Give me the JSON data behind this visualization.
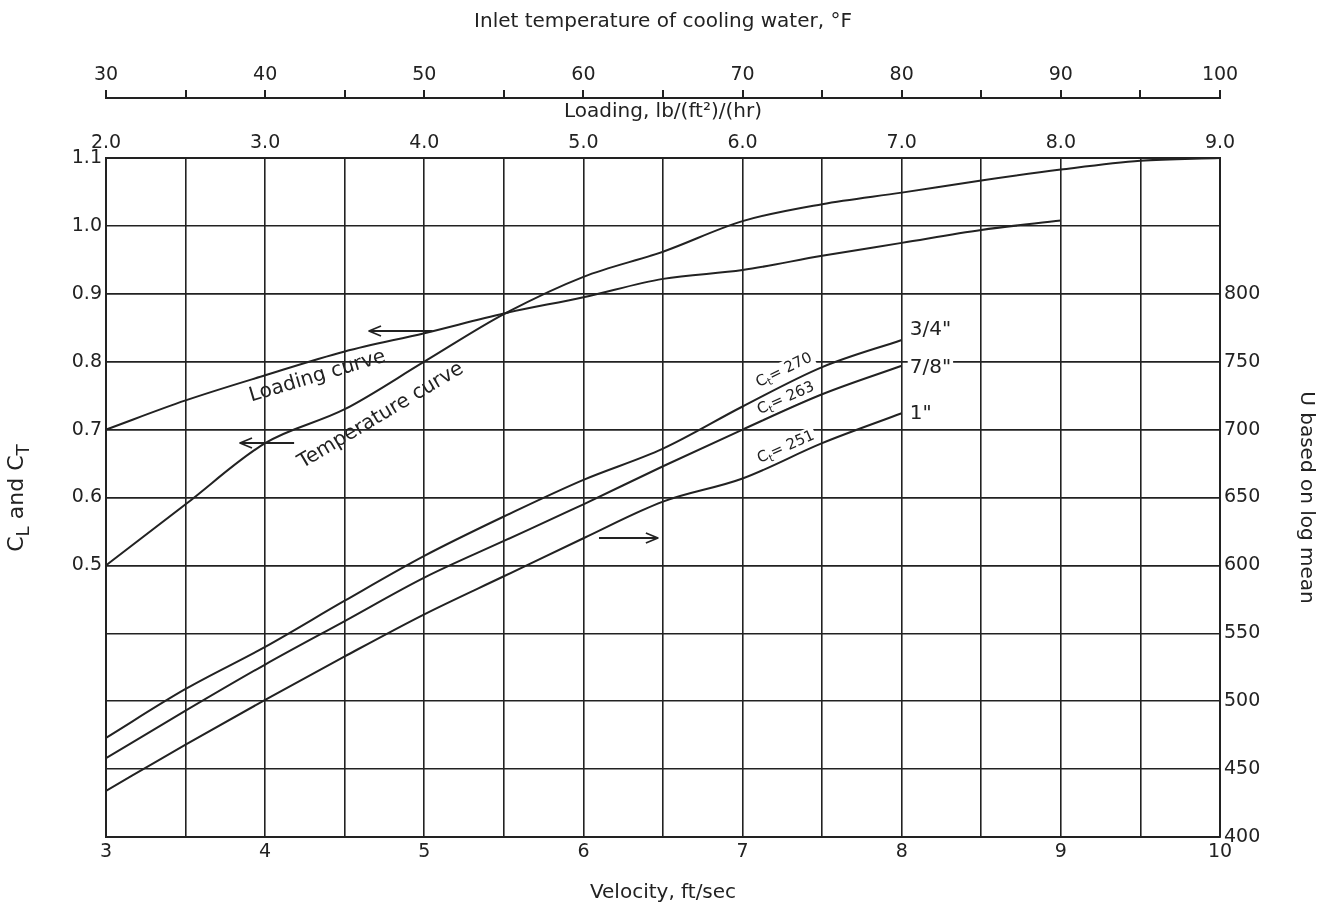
{
  "chart_data": [
    {
      "type": "line",
      "xlabel": "Velocity, ft/sec",
      "x2label": "Inlet temperature of cooling water, °F",
      "ylabel": "C$_{L}$ and C$_{T}$",
      "y2label": "U based on log mean",
      "xlim": [
        3,
        10
      ],
      "xticks": [
        3,
        {
          "value": 3.5,
          "label": null
        },
        4,
        {
          "value": 4.5,
          "label": null
        },
        5,
        {
          "value": 5.5,
          "label": null
        },
        6,
        {
          "value": 6.5,
          "label": null
        },
        7,
        {
          "value": 7.5,
          "label": null
        },
        8,
        {
          "value": 8.5,
          "label": null
        },
        9,
        {
          "value": 9.5,
          "label": null
        },
        10
      ],
      "x2lim": [
        30,
        100
      ],
      "x2ticks": [
        30,
        {
          "value": 35,
          "label": null
        },
        40,
        {
          "value": 45,
          "label": null
        },
        50,
        {
          "value": 55,
          "label": null
        },
        60,
        {
          "value": 65,
          "label": null
        },
        70,
        {
          "value": 75,
          "label": null
        },
        80,
        {
          "value": 85,
          "label": null
        },
        90,
        {
          "value": 95,
          "label": null
        },
        100
      ],
      "ylim": [
        0.1,
        1.1
      ],
      "yticks": [
        0.5,
        0.6,
        0.7,
        0.8,
        0.9,
        {
          "value": 1,
          "label": "1.0"
        },
        1.1
      ],
      "y2lim": [
        400,
        900
      ],
      "y2ticks": [
        400,
        450,
        500,
        550,
        600,
        650,
        700,
        750,
        800
      ],
      "grid": true,
      "marker": "none",
      "line_style": "solid",
      "series": [
        {
          "name": "Temperature curve",
          "axis": "x2",
          "color": "#222222",
          "x": [
            30,
            35,
            40,
            45,
            50,
            55,
            60,
            65,
            70,
            75,
            80,
            85,
            90,
            95,
            100
          ],
          "values": [
            0.5,
            0.59,
            0.68,
            0.73,
            0.8,
            0.87,
            0.925,
            0.962,
            1.007,
            1.032,
            1.049,
            1.067,
            1.083,
            1.096,
            1.1
          ]
        },
        {
          "name": "3/4\"",
          "axis": "y2",
          "color": "#222222",
          "x": [
            3,
            3.5,
            4,
            4.5,
            5,
            5.5,
            6,
            6.5,
            7,
            7.5,
            8
          ],
          "values": [
            473,
            509,
            540,
            574,
            607,
            636,
            663,
            686,
            717,
            746,
            766
          ]
        },
        {
          "name": "7/8\"",
          "axis": "y2",
          "color": "#222222",
          "x": [
            3,
            3.5,
            4,
            4.5,
            5,
            5.5,
            6,
            6.5,
            7,
            7.5,
            8
          ],
          "values": [
            458,
            493,
            527,
            559,
            591,
            618,
            645,
            673,
            700,
            726,
            747
          ]
        },
        {
          "name": "1\"",
          "axis": "y2",
          "color": "#222222",
          "x": [
            3,
            3.5,
            4,
            4.5,
            5,
            5.5,
            6,
            6.5,
            7,
            7.5,
            8
          ],
          "values": [
            434,
            468,
            501,
            533,
            564,
            592,
            620,
            647,
            664,
            690,
            712
          ]
        }
      ],
      "annotations": [
        "C$_{t}$= 270",
        "C$_{t}$= 263",
        "C$_{t}$= 251"
      ]
    },
    {
      "type": "line",
      "xlabel": "Loading, lb/(ft²)/(hr)",
      "tick_labels": "x",
      "marker": "none",
      "line_style": "solid",
      "xlim": [
        2,
        9
      ],
      "xticks": [
        {
          "value": 2,
          "label": "2.0"
        },
        {
          "value": 3,
          "label": "3.0"
        },
        {
          "value": 4,
          "label": "4.0"
        },
        {
          "value": 5,
          "label": "5.0"
        },
        {
          "value": 6,
          "label": "6.0"
        },
        {
          "value": 7,
          "label": "7.0"
        },
        {
          "value": 8,
          "label": "8.0"
        },
        {
          "value": 9,
          "label": "9.0"
        }
      ],
      "ylim": [
        0.1,
        1.1
      ],
      "series": [
        {
          "name": "Loading curve",
          "color": "#222222",
          "x": [
            2,
            2.5,
            3,
            3.5,
            4,
            4.5,
            5,
            5.5,
            6,
            6.5,
            7,
            7.5,
            8
          ],
          "values": [
            0.7,
            0.743,
            0.78,
            0.815,
            0.842,
            0.871,
            0.895,
            0.922,
            0.935,
            0.956,
            0.975,
            0.994,
            1.008
          ]
        }
      ]
    }
  ]
}
